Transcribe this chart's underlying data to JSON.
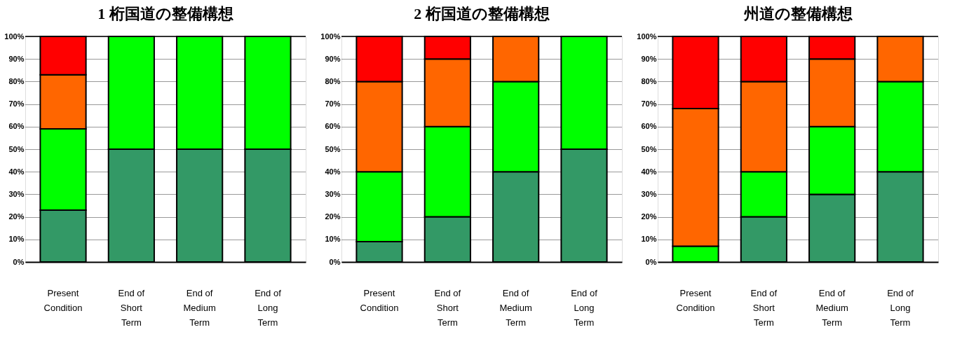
{
  "chart_data": [
    {
      "type": "bar",
      "stacked": true,
      "title": "1 桁国道の整備構想",
      "categories": [
        "Present\nCondition",
        "End of\nShort\nTerm",
        "End of\nMedium\nTerm",
        "End of\nLong\nTerm"
      ],
      "series": [
        {
          "color": "#339966",
          "values": [
            23,
            50,
            50,
            50
          ]
        },
        {
          "color": "#00ff00",
          "values": [
            36,
            50,
            50,
            50
          ]
        },
        {
          "color": "#ff6600",
          "values": [
            24,
            0,
            0,
            0
          ]
        },
        {
          "color": "#ff0000",
          "values": [
            17,
            0,
            0,
            0
          ]
        }
      ],
      "ylim": [
        0,
        100
      ],
      "yticks": [
        {
          "value": 0,
          "label": "0%"
        },
        {
          "value": 10,
          "label": "10%"
        },
        {
          "value": 20,
          "label": "20%"
        },
        {
          "value": 30,
          "label": "30%"
        },
        {
          "value": 40,
          "label": "40%"
        },
        {
          "value": 50,
          "label": "50%"
        },
        {
          "value": 60,
          "label": "60%"
        },
        {
          "value": 70,
          "label": "70%"
        },
        {
          "value": 80,
          "label": "80%"
        },
        {
          "value": 90,
          "label": "90%"
        },
        {
          "value": 100,
          "label": "100%"
        }
      ],
      "grid": "y",
      "legend": false
    },
    {
      "type": "bar",
      "stacked": true,
      "title": "2 桁国道の整備構想",
      "categories": [
        "Present\nCondition",
        "End of\nShort\nTerm",
        "End of\nMedium\nTerm",
        "End of\nLong\nTerm"
      ],
      "series": [
        {
          "color": "#339966",
          "values": [
            9,
            20,
            40,
            50
          ]
        },
        {
          "color": "#00ff00",
          "values": [
            31,
            40,
            40,
            50
          ]
        },
        {
          "color": "#ff6600",
          "values": [
            40,
            30,
            20,
            0
          ]
        },
        {
          "color": "#ff0000",
          "values": [
            20,
            10,
            0,
            0
          ]
        }
      ],
      "ylim": [
        0,
        100
      ],
      "yticks": [
        {
          "value": 0,
          "label": "0%"
        },
        {
          "value": 10,
          "label": "10%"
        },
        {
          "value": 20,
          "label": "20%"
        },
        {
          "value": 30,
          "label": "30%"
        },
        {
          "value": 40,
          "label": "40%"
        },
        {
          "value": 50,
          "label": "50%"
        },
        {
          "value": 60,
          "label": "60%"
        },
        {
          "value": 70,
          "label": "70%"
        },
        {
          "value": 80,
          "label": "80%"
        },
        {
          "value": 90,
          "label": "90%"
        },
        {
          "value": 100,
          "label": "100%"
        }
      ],
      "grid": "y",
      "legend": false
    },
    {
      "type": "bar",
      "stacked": true,
      "title": "州道の整備構想",
      "categories": [
        "Present\nCondition",
        "End of\nShort\nTerm",
        "End of\nMedium\nTerm",
        "End of\nLong\nTerm"
      ],
      "series": [
        {
          "color": "#339966",
          "values": [
            0,
            20,
            30,
            40
          ]
        },
        {
          "color": "#00ff00",
          "values": [
            7,
            20,
            30,
            40
          ]
        },
        {
          "color": "#ff6600",
          "values": [
            61,
            40,
            30,
            20
          ]
        },
        {
          "color": "#ff0000",
          "values": [
            32,
            20,
            10,
            0
          ]
        }
      ],
      "ylim": [
        0,
        100
      ],
      "yticks": [
        {
          "value": 0,
          "label": "0%"
        },
        {
          "value": 10,
          "label": "10%"
        },
        {
          "value": 20,
          "label": "20%"
        },
        {
          "value": 30,
          "label": "30%"
        },
        {
          "value": 40,
          "label": "40%"
        },
        {
          "value": 50,
          "label": "50%"
        },
        {
          "value": 60,
          "label": "60%"
        },
        {
          "value": 70,
          "label": "70%"
        },
        {
          "value": 80,
          "label": "80%"
        },
        {
          "value": 90,
          "label": "90%"
        },
        {
          "value": 100,
          "label": "100%"
        }
      ],
      "grid": "y",
      "legend": false
    }
  ]
}
